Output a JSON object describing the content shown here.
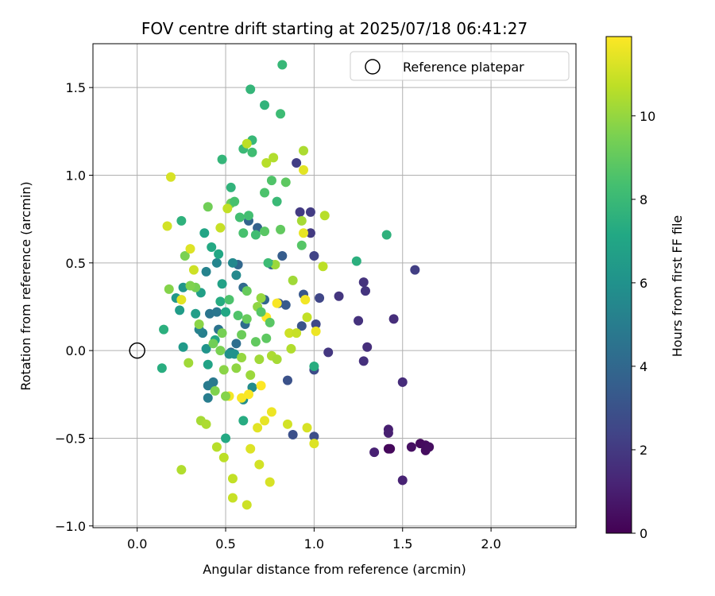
{
  "chart_data": {
    "type": "scatter",
    "title": "FOV centre drift starting at 2025/07/18 06:41:27",
    "xlabel": "Angular distance from reference (arcmin)",
    "ylabel": "Rotation from reference (arcmin)",
    "xlim": [
      -0.25,
      2.48
    ],
    "ylim": [
      -1.01,
      1.75
    ],
    "xticks": [
      0.0,
      0.5,
      1.0,
      1.5,
      2.0
    ],
    "xtick_labels": [
      "0.0",
      "0.5",
      "1.0",
      "1.5",
      "2.0"
    ],
    "yticks": [
      -1.0,
      -0.5,
      0.0,
      0.5,
      1.0,
      1.5
    ],
    "ytick_labels": [
      "−1.0",
      "−0.5",
      "0.0",
      "0.5",
      "1.0",
      "1.5"
    ],
    "grid": true,
    "legend": {
      "position": "top-right",
      "entries": [
        "Reference platepar"
      ]
    },
    "reference_point": {
      "x": 0.0,
      "y": 0.0
    },
    "colorbar": {
      "label": "Hours from first FF file",
      "range": [
        0,
        11.9
      ],
      "ticks": [
        0,
        2,
        4,
        6,
        8,
        10
      ],
      "tick_labels": [
        "0",
        "2",
        "4",
        "6",
        "8",
        "10"
      ],
      "colormap": "viridis"
    },
    "points": [
      [
        1.42,
        -0.56,
        0.2
      ],
      [
        1.43,
        -0.56,
        0.25
      ],
      [
        1.6,
        -0.53,
        0.3
      ],
      [
        1.63,
        -0.54,
        0.35
      ],
      [
        1.63,
        -0.57,
        0.4
      ],
      [
        1.65,
        -0.55,
        0.45
      ],
      [
        1.55,
        -0.55,
        0.5
      ],
      [
        1.42,
        -0.45,
        1.0
      ],
      [
        1.42,
        -0.47,
        1.05
      ],
      [
        1.34,
        -0.58,
        1.1
      ],
      [
        1.5,
        -0.74,
        1.15
      ],
      [
        1.5,
        -0.18,
        1.5
      ],
      [
        1.45,
        0.18,
        1.55
      ],
      [
        1.3,
        0.02,
        1.6
      ],
      [
        1.28,
        -0.06,
        1.65
      ],
      [
        1.25,
        0.17,
        1.7
      ],
      [
        1.28,
        0.39,
        1.75
      ],
      [
        1.29,
        0.34,
        1.8
      ],
      [
        1.14,
        0.31,
        1.85
      ],
      [
        1.08,
        -0.01,
        1.9
      ],
      [
        0.98,
        0.67,
        2.0
      ],
      [
        0.92,
        0.79,
        2.05
      ],
      [
        0.98,
        0.79,
        2.1
      ],
      [
        0.9,
        1.07,
        2.15
      ],
      [
        1.57,
        0.46,
        2.2
      ],
      [
        1.0,
        0.54,
        2.4
      ],
      [
        1.03,
        0.3,
        2.5
      ],
      [
        1.01,
        0.15,
        2.6
      ],
      [
        1.0,
        -0.11,
        2.7
      ],
      [
        1.0,
        -0.49,
        2.8
      ],
      [
        0.88,
        -0.48,
        2.9
      ],
      [
        0.85,
        -0.17,
        3.0
      ],
      [
        0.93,
        0.14,
        3.1
      ],
      [
        0.94,
        0.32,
        3.2
      ],
      [
        0.8,
        0.27,
        3.3
      ],
      [
        0.84,
        0.26,
        3.4
      ],
      [
        0.82,
        0.54,
        3.5
      ],
      [
        0.76,
        0.49,
        3.6
      ],
      [
        0.68,
        0.7,
        3.7
      ],
      [
        0.63,
        0.74,
        3.8
      ],
      [
        0.72,
        0.29,
        3.9
      ],
      [
        0.57,
        0.49,
        4.0
      ],
      [
        0.6,
        0.36,
        4.1
      ],
      [
        0.61,
        0.15,
        4.2
      ],
      [
        0.56,
        0.04,
        4.3
      ],
      [
        0.53,
        -0.01,
        4.4
      ],
      [
        0.46,
        0.12,
        4.5
      ],
      [
        0.41,
        0.21,
        4.6
      ],
      [
        0.45,
        0.22,
        4.7
      ],
      [
        0.43,
        -0.18,
        4.8
      ],
      [
        0.4,
        -0.2,
        4.9
      ],
      [
        0.4,
        -0.27,
        5.0
      ],
      [
        0.37,
        0.1,
        5.1
      ],
      [
        0.35,
        0.12,
        5.2
      ],
      [
        0.39,
        0.45,
        5.3
      ],
      [
        0.45,
        0.5,
        5.4
      ],
      [
        0.54,
        0.5,
        5.5
      ],
      [
        0.56,
        0.43,
        5.6
      ],
      [
        0.65,
        -0.21,
        5.7
      ],
      [
        0.6,
        -0.28,
        5.8
      ],
      [
        0.52,
        -0.02,
        5.9
      ],
      [
        0.55,
        -0.02,
        6.0
      ],
      [
        0.39,
        0.01,
        6.1
      ],
      [
        0.26,
        0.36,
        6.2
      ],
      [
        0.22,
        0.3,
        6.3
      ],
      [
        0.26,
        0.02,
        6.4
      ],
      [
        0.24,
        0.23,
        6.5
      ],
      [
        0.33,
        0.21,
        6.6
      ],
      [
        0.36,
        0.33,
        6.7
      ],
      [
        0.48,
        0.38,
        6.8
      ],
      [
        0.4,
        -0.08,
        6.9
      ],
      [
        0.44,
        0.06,
        7.0
      ],
      [
        0.5,
        0.22,
        7.1
      ],
      [
        0.42,
        0.59,
        7.2
      ],
      [
        0.47,
        0.28,
        7.3
      ],
      [
        0.14,
        -0.1,
        7.4
      ],
      [
        0.15,
        0.12,
        7.5
      ],
      [
        0.25,
        0.74,
        7.6
      ],
      [
        0.53,
        0.93,
        7.7
      ],
      [
        0.48,
        1.09,
        7.8
      ],
      [
        0.65,
        1.2,
        7.9
      ],
      [
        0.6,
        1.15,
        8.0
      ],
      [
        0.81,
        1.35,
        8.1
      ],
      [
        0.65,
        1.13,
        8.2
      ],
      [
        0.63,
        0.77,
        8.3
      ],
      [
        0.6,
        0.67,
        8.4
      ],
      [
        0.72,
        0.9,
        8.5
      ],
      [
        0.76,
        0.97,
        8.6
      ],
      [
        0.93,
        0.6,
        8.7
      ],
      [
        0.72,
        0.68,
        8.8
      ],
      [
        0.84,
        0.96,
        8.9
      ],
      [
        0.81,
        0.69,
        9.0
      ],
      [
        0.62,
        0.34,
        9.1
      ],
      [
        0.53,
        0.84,
        9.2
      ],
      [
        0.4,
        0.82,
        9.3
      ],
      [
        0.33,
        0.36,
        9.4
      ],
      [
        0.27,
        0.54,
        9.5
      ],
      [
        0.3,
        0.37,
        9.6
      ],
      [
        0.18,
        0.35,
        9.7
      ],
      [
        0.35,
        0.15,
        9.8
      ],
      [
        0.68,
        0.25,
        9.9
      ],
      [
        0.7,
        0.3,
        10.0
      ],
      [
        0.78,
        0.49,
        10.1
      ],
      [
        0.88,
        0.4,
        10.2
      ],
      [
        0.93,
        0.74,
        10.3
      ],
      [
        0.94,
        1.14,
        10.4
      ],
      [
        0.77,
        1.1,
        10.5
      ],
      [
        0.73,
        1.07,
        10.6
      ],
      [
        0.62,
        1.18,
        10.7
      ],
      [
        0.51,
        0.81,
        10.8
      ],
      [
        0.47,
        0.7,
        10.9
      ],
      [
        0.32,
        0.46,
        11.0
      ],
      [
        0.17,
        0.71,
        11.1
      ],
      [
        0.19,
        0.99,
        11.2
      ],
      [
        0.3,
        0.58,
        11.3
      ],
      [
        0.25,
        0.29,
        11.4
      ],
      [
        0.29,
        -0.07,
        10.2
      ],
      [
        0.36,
        -0.4,
        10.3
      ],
      [
        0.39,
        -0.42,
        10.4
      ],
      [
        0.25,
        -0.68,
        10.5
      ],
      [
        0.45,
        -0.55,
        10.6
      ],
      [
        0.49,
        -0.61,
        10.7
      ],
      [
        0.54,
        -0.73,
        10.8
      ],
      [
        0.54,
        -0.84,
        10.9
      ],
      [
        0.62,
        -0.88,
        11.0
      ],
      [
        0.69,
        -0.65,
        11.1
      ],
      [
        0.75,
        -0.75,
        11.2
      ],
      [
        0.64,
        -0.56,
        11.3
      ],
      [
        0.68,
        -0.44,
        11.4
      ],
      [
        0.72,
        -0.4,
        11.5
      ],
      [
        0.76,
        -0.35,
        11.6
      ],
      [
        0.52,
        -0.26,
        11.7
      ],
      [
        0.59,
        -0.27,
        11.8
      ],
      [
        0.63,
        -0.25,
        11.85
      ],
      [
        0.7,
        -0.2,
        11.9
      ],
      [
        0.73,
        0.19,
        11.9
      ],
      [
        0.79,
        0.27,
        11.8
      ],
      [
        0.95,
        0.29,
        11.7
      ],
      [
        1.01,
        0.11,
        11.6
      ],
      [
        0.94,
        0.67,
        11.5
      ],
      [
        0.94,
        1.03,
        11.4
      ],
      [
        1.0,
        -0.53,
        11.3
      ],
      [
        0.96,
        -0.44,
        11.2
      ],
      [
        0.85,
        -0.42,
        11.1
      ],
      [
        0.86,
        0.1,
        11.0
      ],
      [
        0.9,
        0.1,
        10.9
      ],
      [
        0.96,
        0.19,
        10.8
      ],
      [
        1.05,
        0.48,
        10.7
      ],
      [
        1.06,
        0.77,
        10.6
      ],
      [
        0.87,
        0.01,
        10.5
      ],
      [
        0.76,
        -0.03,
        10.4
      ],
      [
        0.79,
        -0.05,
        10.3
      ],
      [
        0.69,
        -0.05,
        10.2
      ],
      [
        0.64,
        -0.14,
        10.1
      ],
      [
        0.59,
        -0.04,
        10.0
      ],
      [
        0.56,
        -0.1,
        9.9
      ],
      [
        0.49,
        -0.11,
        9.8
      ],
      [
        0.5,
        -0.26,
        9.7
      ],
      [
        0.44,
        -0.23,
        9.6
      ],
      [
        0.47,
        0.0,
        9.5
      ],
      [
        0.48,
        0.1,
        9.4
      ],
      [
        0.43,
        0.04,
        9.3
      ],
      [
        0.59,
        0.09,
        9.2
      ],
      [
        0.62,
        0.18,
        9.1
      ],
      [
        0.67,
        0.05,
        9.0
      ],
      [
        0.73,
        0.07,
        8.9
      ],
      [
        0.75,
        0.16,
        8.8
      ],
      [
        0.7,
        0.22,
        8.7
      ],
      [
        0.57,
        0.2,
        8.6
      ],
      [
        0.52,
        0.29,
        8.5
      ],
      [
        0.55,
        0.85,
        8.4
      ],
      [
        0.58,
        0.76,
        8.3
      ],
      [
        0.67,
        0.66,
        8.2
      ],
      [
        0.74,
        0.5,
        8.1
      ],
      [
        0.79,
        0.85,
        8.0
      ],
      [
        0.82,
        1.63,
        7.9
      ],
      [
        0.64,
        1.49,
        7.8
      ],
      [
        0.72,
        1.4,
        7.7
      ],
      [
        1.41,
        0.66,
        7.6
      ],
      [
        1.24,
        0.51,
        7.5
      ],
      [
        1.0,
        -0.09,
        7.4
      ],
      [
        0.6,
        -0.4,
        7.3
      ],
      [
        0.5,
        -0.5,
        7.2
      ],
      [
        0.46,
        0.55,
        7.1
      ],
      [
        0.38,
        0.67,
        7.0
      ]
    ]
  }
}
